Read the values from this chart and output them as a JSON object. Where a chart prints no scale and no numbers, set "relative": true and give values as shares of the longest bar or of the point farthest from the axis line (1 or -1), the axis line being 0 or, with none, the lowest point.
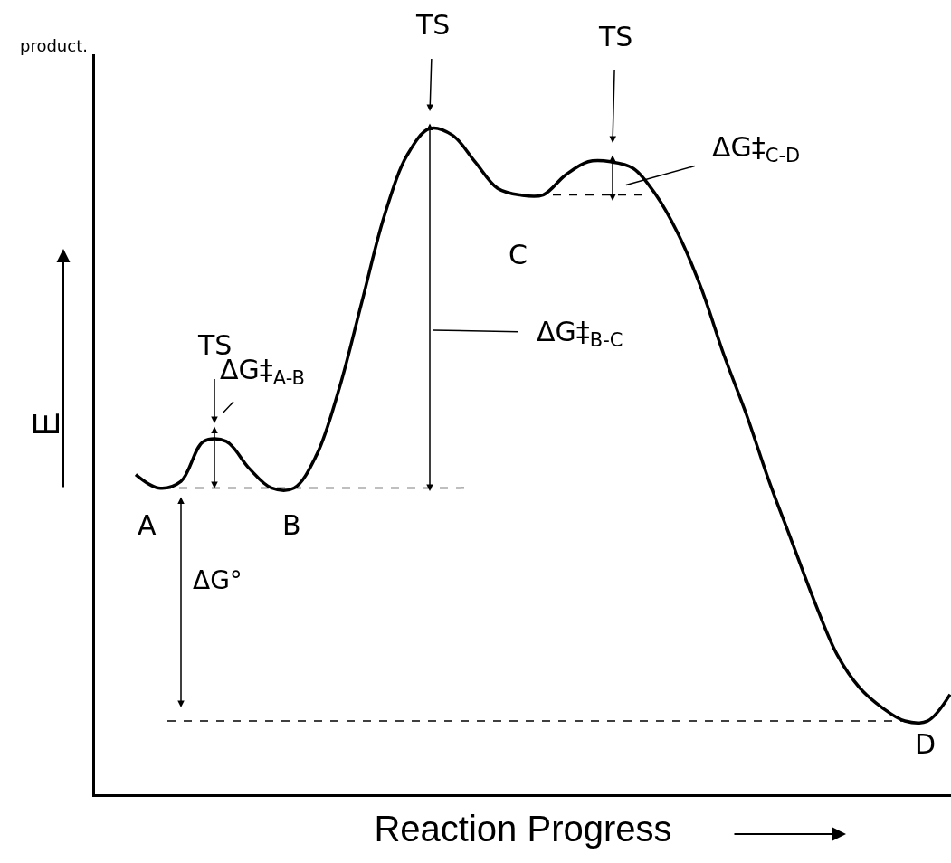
{
  "chart_data": {
    "type": "line",
    "relative": true,
    "xlabel": "Reaction Progress",
    "ylabel": "E",
    "categories": [
      null,
      null,
      null,
      null,
      null,
      null,
      null,
      null,
      null,
      null,
      null,
      null,
      null,
      null,
      null,
      null,
      null,
      null,
      null,
      null,
      null,
      null,
      null,
      null,
      null,
      null,
      null,
      null,
      null,
      null,
      null,
      null,
      null,
      null,
      null,
      null,
      null
    ],
    "series": [
      {
        "color": "#000000",
        "values": [
          0.48,
          0.46,
          0.47,
          0.53,
          0.53,
          0.49,
          0.46,
          0.46,
          0.51,
          0.61,
          0.74,
          0.87,
          0.96,
          1.0,
          0.99,
          0.95,
          0.91,
          0.9,
          0.9,
          0.93,
          0.95,
          0.95,
          0.94,
          0.9,
          0.84,
          0.76,
          0.66,
          0.57,
          0.47,
          0.38,
          0.29,
          0.21,
          0.16,
          0.13,
          0.11,
          0.11,
          0.15
        ]
      }
    ],
    "ref_lines": [
      {
        "axis": "y",
        "value": 0.46,
        "label": null,
        "color": "#000000",
        "line_style": "dashed"
      },
      {
        "axis": "y",
        "value": 0.9,
        "label": null,
        "color": "#000000",
        "line_style": "dashed"
      },
      {
        "axis": "y",
        "value": 0.11,
        "label": null,
        "color": "#000000",
        "line_style": "dashed"
      }
    ],
    "annotations": [
      "product.",
      "TS",
      "TS",
      "TS",
      "ΔG‡$_{A-B}$",
      "ΔG‡$_{B-C}$",
      "ΔG‡$_{C-D}$",
      "ΔG°",
      "A",
      "B",
      "C",
      "D"
    ],
    "marker": "none",
    "line_style": "solid"
  }
}
